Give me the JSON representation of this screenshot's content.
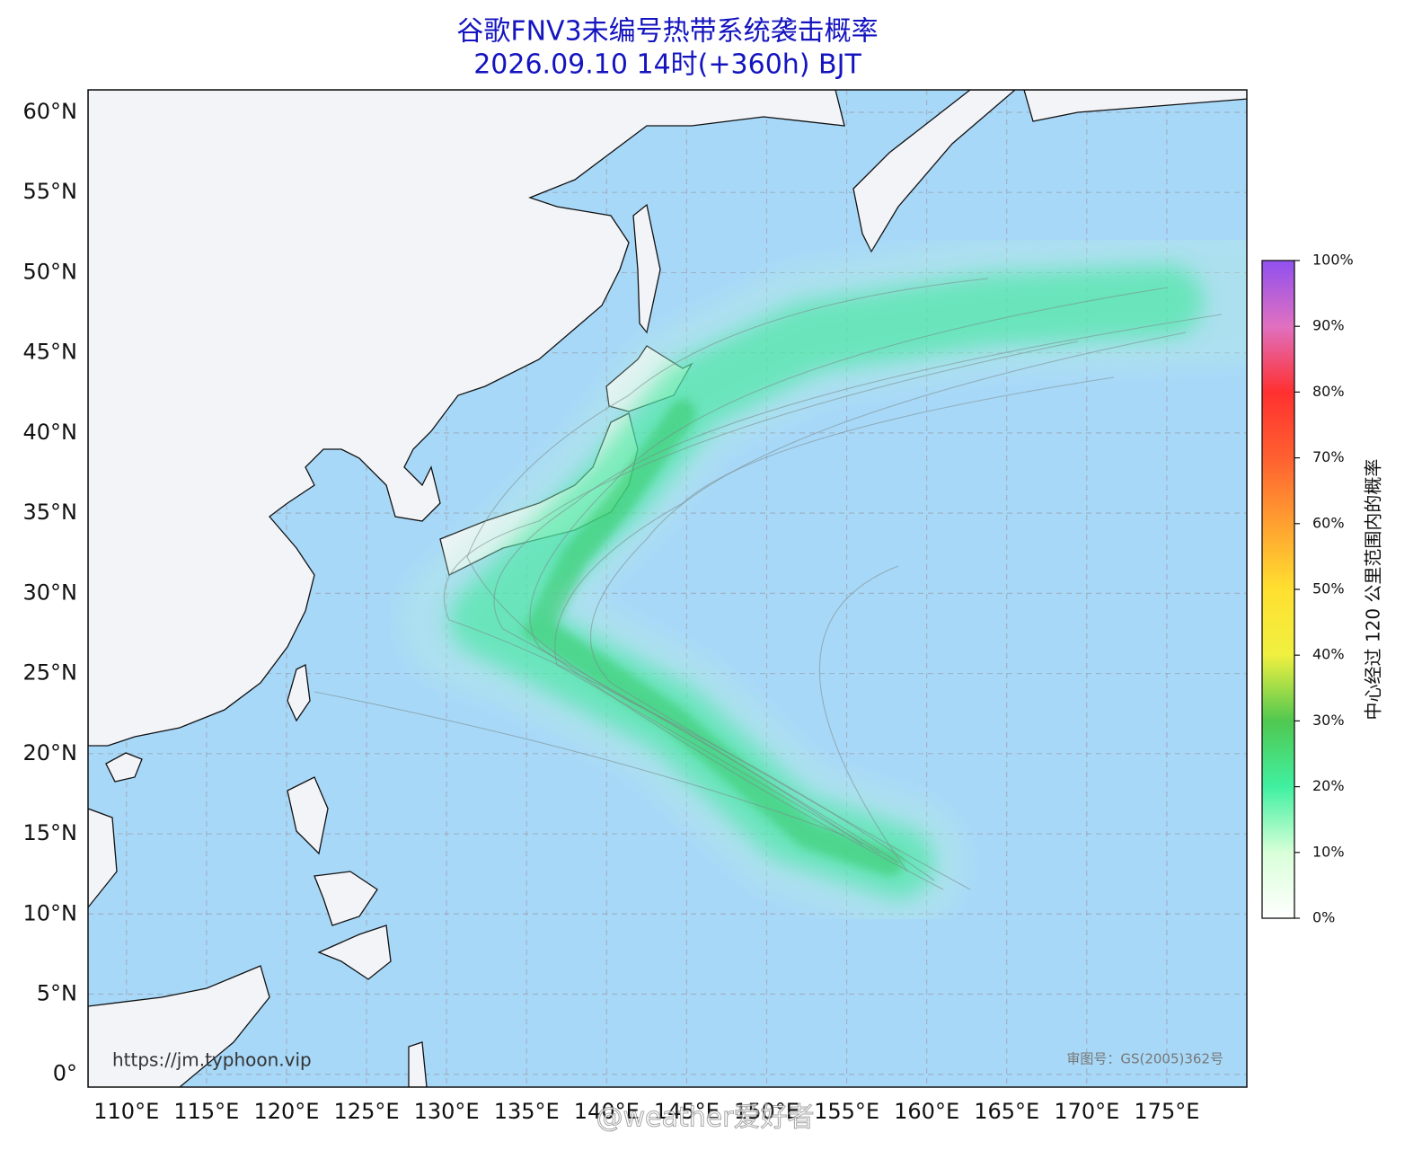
{
  "title": "谷歌FNV3未编号热带系统袭击概率",
  "subtitle": "2026.09.10 14时(+360h) BJT",
  "map": {
    "xlim": [
      107.6,
      180
    ],
    "ylim": [
      -0.8,
      61.4
    ],
    "grid": true,
    "xticks": [
      {
        "value": 110,
        "label": "110°E"
      },
      {
        "value": 115,
        "label": "115°E"
      },
      {
        "value": 120,
        "label": "120°E"
      },
      {
        "value": 125,
        "label": "125°E"
      },
      {
        "value": 130,
        "label": "130°E"
      },
      {
        "value": 135,
        "label": "135°E"
      },
      {
        "value": 140,
        "label": "140°E"
      },
      {
        "value": 145,
        "label": "145°E"
      },
      {
        "value": 150,
        "label": "150°E"
      },
      {
        "value": 155,
        "label": "155°E"
      },
      {
        "value": 160,
        "label": "160°E"
      },
      {
        "value": 165,
        "label": "165°E"
      },
      {
        "value": 170,
        "label": "170°E"
      },
      {
        "value": 175,
        "label": "175°E"
      }
    ],
    "yticks": [
      {
        "value": 0,
        "label": "0°"
      },
      {
        "value": 5,
        "label": "5°N"
      },
      {
        "value": 10,
        "label": "10°N"
      },
      {
        "value": 15,
        "label": "15°N"
      },
      {
        "value": 20,
        "label": "20°N"
      },
      {
        "value": 25,
        "label": "25°N"
      },
      {
        "value": 30,
        "label": "30°N"
      },
      {
        "value": 35,
        "label": "35°N"
      },
      {
        "value": 40,
        "label": "40°N"
      },
      {
        "value": 45,
        "label": "45°N"
      },
      {
        "value": 50,
        "label": "50°N"
      },
      {
        "value": 55,
        "label": "55°N"
      },
      {
        "value": 60,
        "label": "60°N"
      }
    ]
  },
  "colorbar": {
    "label": "中心经过 120 公里范围内的概率",
    "lim": [
      0,
      100
    ],
    "ticks": [
      {
        "value": 0,
        "label": "0%"
      },
      {
        "value": 10,
        "label": "10%"
      },
      {
        "value": 20,
        "label": "20%"
      },
      {
        "value": 30,
        "label": "30%"
      },
      {
        "value": 40,
        "label": "40%"
      },
      {
        "value": 50,
        "label": "50%"
      },
      {
        "value": 60,
        "label": "60%"
      },
      {
        "value": 70,
        "label": "70%"
      },
      {
        "value": 80,
        "label": "80%"
      },
      {
        "value": 90,
        "label": "90%"
      },
      {
        "value": 100,
        "label": "100%"
      }
    ]
  },
  "source_url": "https://jm.typhoon.vip",
  "approval": "审图号：GS(2005)362号",
  "watermark": "@weather爱好者"
}
